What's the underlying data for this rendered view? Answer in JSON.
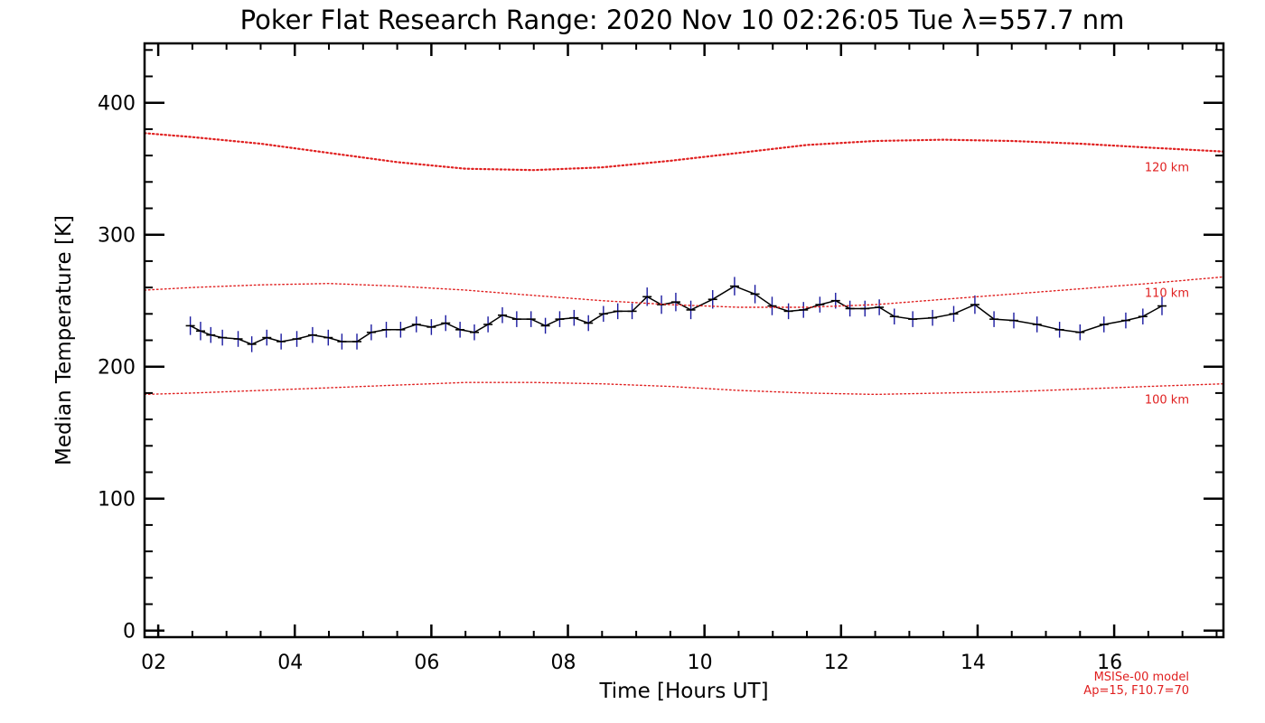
{
  "chart_data": {
    "type": "line",
    "title": "Poker Flat Research Range: 2020 Nov 10 02:26:05 Tue λ=557.7 nm",
    "xlabel": "Time [Hours UT]",
    "ylabel": "Median Temperature [K]",
    "xlim": [
      1.8,
      17.6
    ],
    "ylim": [
      -5,
      445
    ],
    "x_ticks": [
      2,
      4,
      6,
      8,
      10,
      12,
      14,
      16
    ],
    "x_tick_labels": [
      "02",
      "04",
      "06",
      "08",
      "10",
      "12",
      "14",
      "16"
    ],
    "y_ticks": [
      0,
      100,
      200,
      300,
      400
    ],
    "y_tick_labels": [
      "0",
      "100",
      "200",
      "300",
      "400"
    ],
    "grid": false,
    "series": [
      {
        "name": "",
        "style": "solid",
        "color": "#000000",
        "marker_color": "#1a1aa0",
        "x": [
          2.47,
          2.62,
          2.77,
          2.94,
          3.17,
          3.37,
          3.59,
          3.8,
          4.03,
          4.26,
          4.49,
          4.69,
          4.91,
          5.12,
          5.34,
          5.55,
          5.78,
          6.0,
          6.21,
          6.42,
          6.63,
          6.83,
          7.04,
          7.25,
          7.46,
          7.67,
          7.88,
          8.09,
          8.3,
          8.52,
          8.73,
          8.94,
          9.16,
          9.37,
          9.58,
          9.8,
          10.12,
          10.44,
          10.74,
          10.99,
          11.23,
          11.45,
          11.69,
          11.92,
          12.13,
          12.35,
          12.56,
          12.78,
          13.05,
          13.34,
          13.65,
          13.96,
          14.24,
          14.53,
          14.87,
          15.2,
          15.5,
          15.85,
          16.17,
          16.42,
          16.7
        ],
        "values": [
          231,
          227,
          224,
          222,
          221,
          217,
          222,
          219,
          221,
          224,
          222,
          219,
          219,
          226,
          228,
          228,
          232,
          230,
          233,
          228,
          226,
          232,
          239,
          236,
          236,
          231,
          236,
          237,
          233,
          240,
          242,
          242,
          253,
          247,
          249,
          243,
          251,
          261,
          255,
          246,
          242,
          243,
          247,
          250,
          244,
          244,
          245,
          238,
          236,
          237,
          240,
          247,
          236,
          235,
          232,
          228,
          226,
          232,
          235,
          238,
          246
        ],
        "errors": [
          7,
          7,
          6,
          6,
          6,
          6,
          6,
          6,
          6,
          6,
          6,
          6,
          6,
          6,
          6,
          6,
          6,
          6,
          6,
          6,
          6,
          6,
          6,
          6,
          6,
          6,
          6,
          6,
          6,
          6,
          6,
          6,
          7,
          7,
          7,
          7,
          7,
          7,
          7,
          7,
          6,
          6,
          6,
          6,
          6,
          6,
          6,
          6,
          6,
          6,
          6,
          7,
          6,
          6,
          6,
          6,
          6,
          6,
          6,
          6,
          7
        ]
      },
      {
        "name": "120 km",
        "style": "dotted",
        "color": "#e02020",
        "x": [
          1.8,
          2.5,
          3.5,
          4.5,
          5.5,
          6.5,
          7.5,
          8.5,
          9.5,
          10.5,
          11.5,
          12.5,
          13.5,
          14.5,
          15.5,
          16.5,
          17.6
        ],
        "values": [
          377,
          374,
          369,
          362,
          355,
          350,
          349,
          351,
          356,
          362,
          368,
          371,
          372,
          371,
          369,
          366,
          363
        ]
      },
      {
        "name": "110 km",
        "style": "dotted",
        "color": "#e02020",
        "x": [
          1.8,
          2.5,
          3.5,
          4.5,
          5.5,
          6.5,
          7.5,
          8.5,
          9.5,
          10.5,
          11.5,
          12.5,
          13.5,
          14.5,
          15.5,
          16.5,
          17.6
        ],
        "values": [
          258,
          260,
          262,
          263,
          261,
          258,
          254,
          250,
          247,
          245,
          245,
          247,
          251,
          255,
          259,
          263,
          268
        ]
      },
      {
        "name": "100 km",
        "style": "dotted",
        "color": "#e02020",
        "x": [
          1.8,
          2.5,
          3.5,
          4.5,
          5.5,
          6.5,
          7.5,
          8.5,
          9.5,
          10.5,
          11.5,
          12.5,
          13.5,
          14.5,
          15.5,
          16.5,
          17.6
        ],
        "values": [
          179,
          180,
          182,
          184,
          186,
          188,
          188,
          187,
          185,
          182,
          180,
          179,
          180,
          181,
          183,
          185,
          187
        ]
      }
    ],
    "annotations": [
      "MSISe-00 model",
      "Ap=15, F10.7=70"
    ]
  }
}
